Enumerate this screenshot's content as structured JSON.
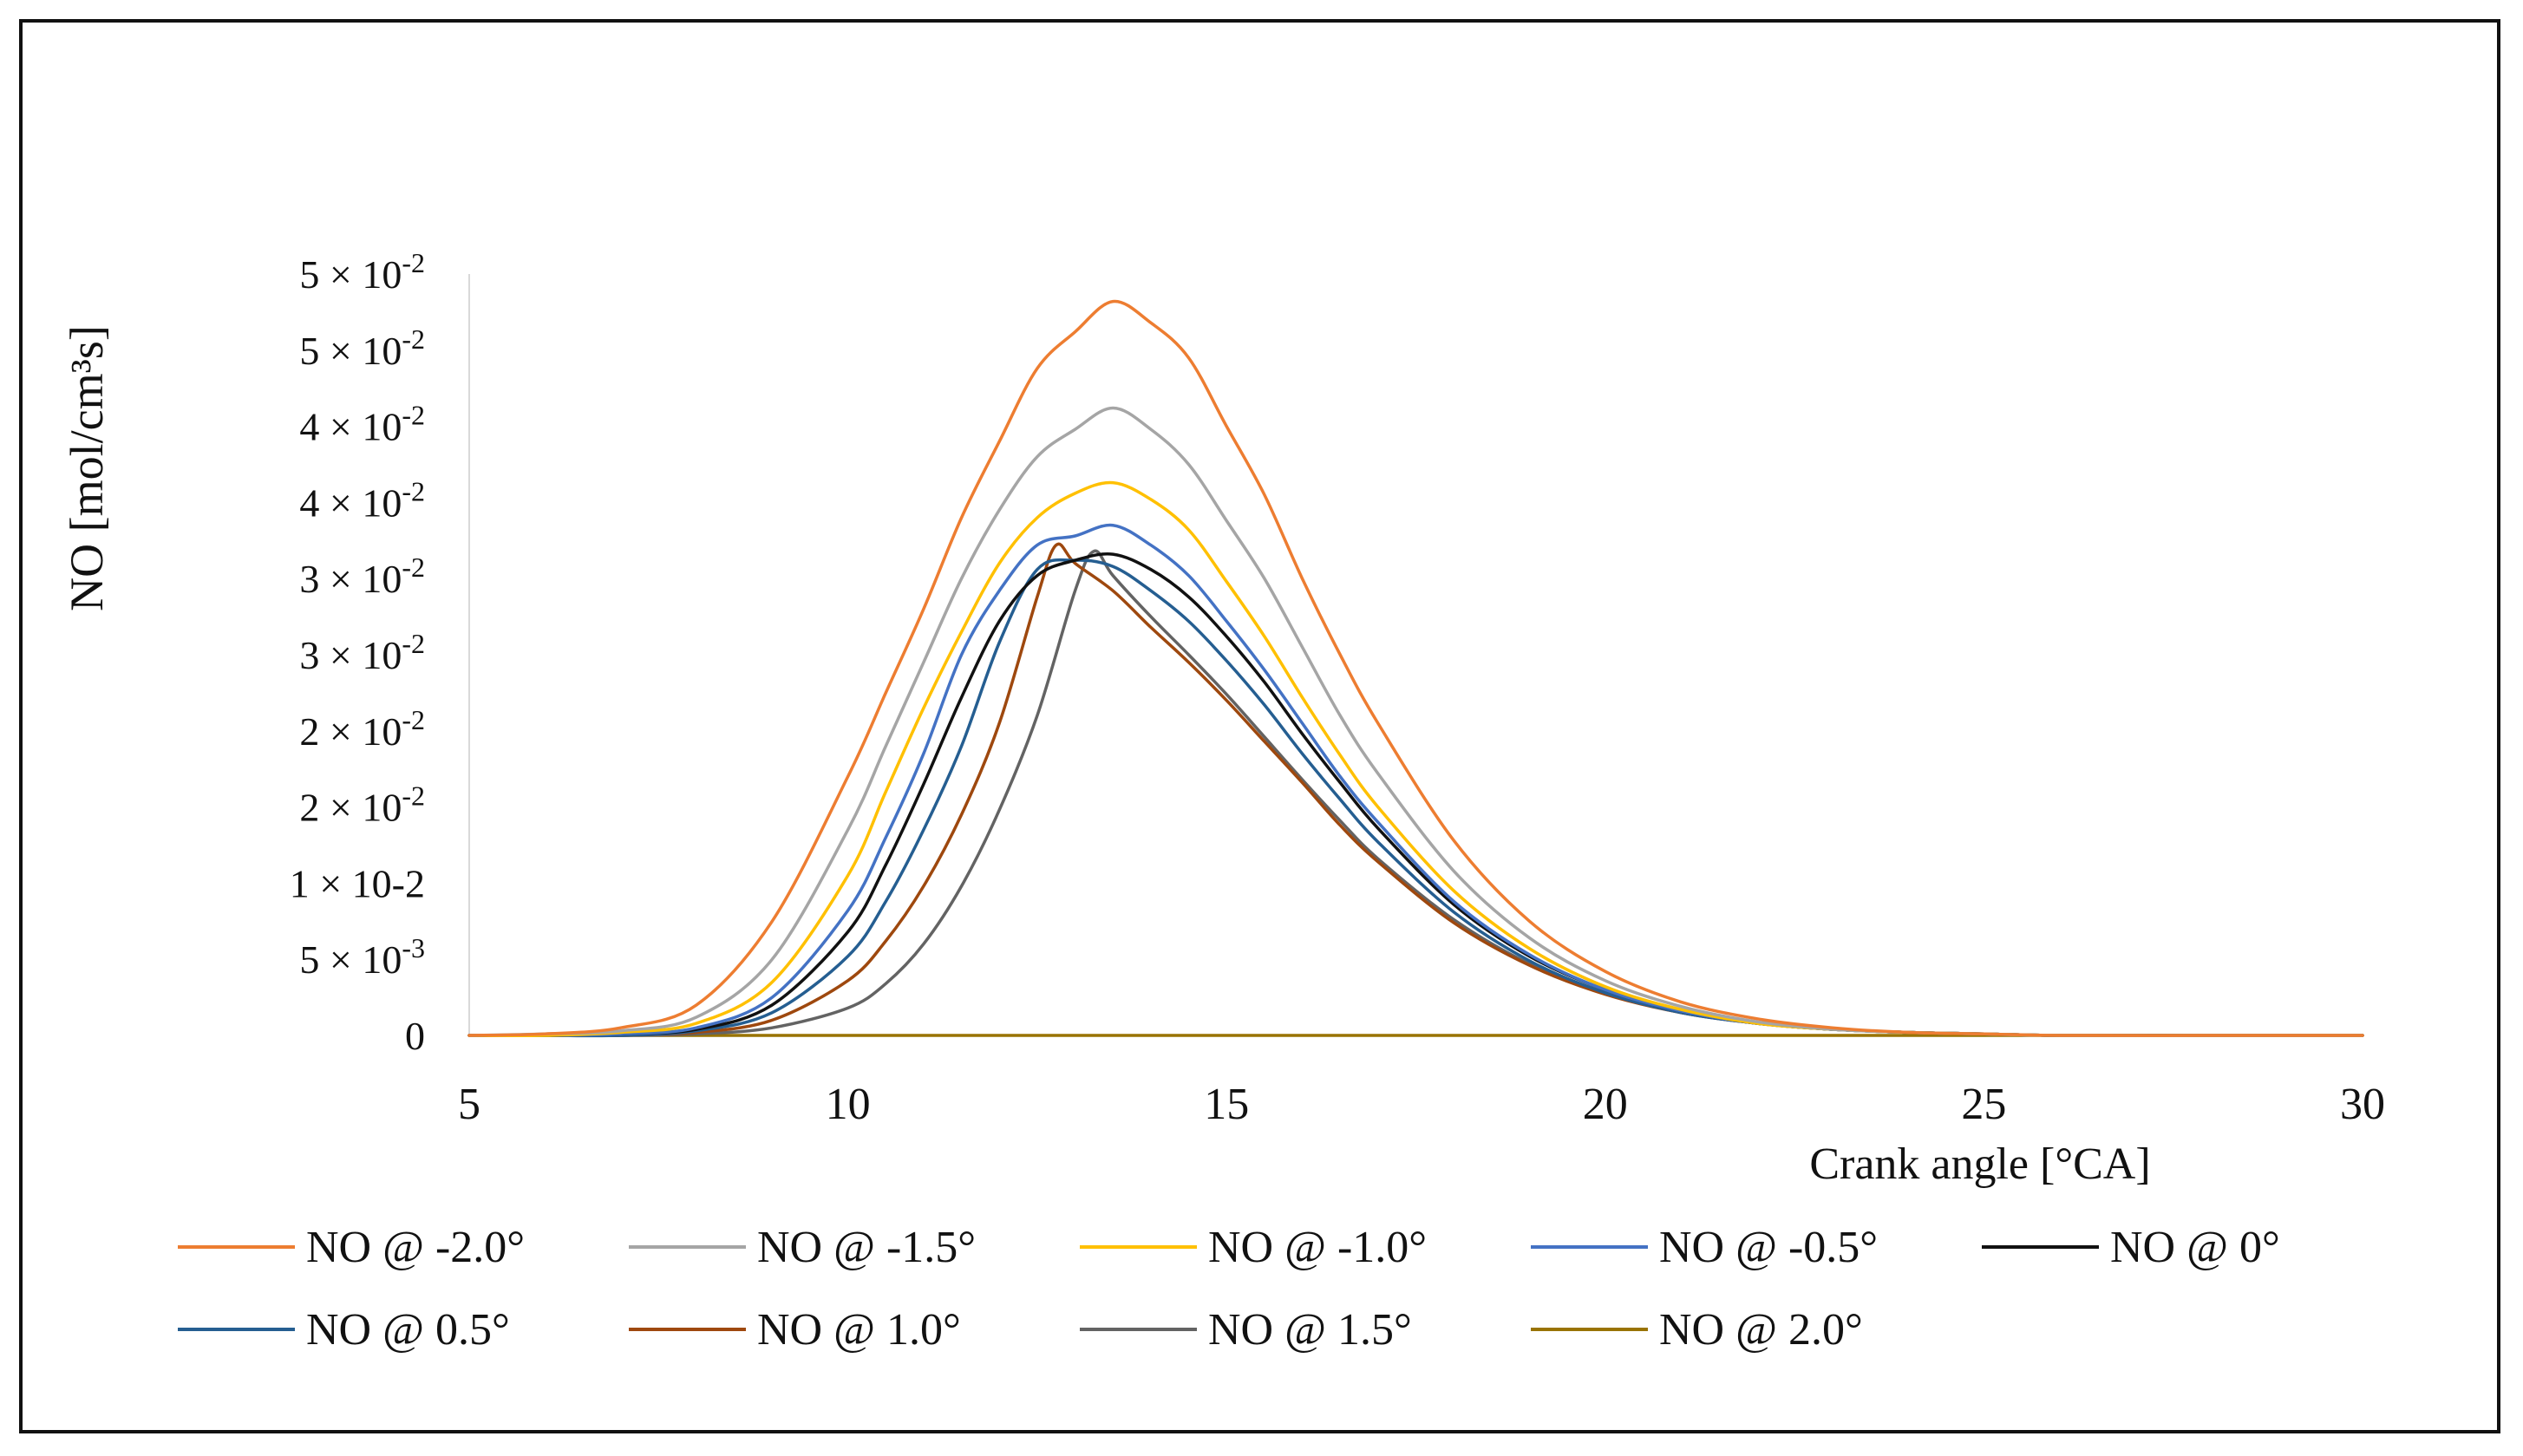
{
  "chart_data": {
    "type": "line",
    "title": "",
    "xlabel": "Crank angle  [°CA]",
    "ylabel": "NO  [mol/cm³s]",
    "xlim": [
      5,
      30
    ],
    "ylim": [
      0,
      0.05
    ],
    "grid": false,
    "legend_position": "bottom",
    "x_ticks": [
      5,
      10,
      15,
      20,
      25,
      30
    ],
    "x_tick_labels": [
      "5",
      "10",
      "15",
      "20",
      "25",
      "30"
    ],
    "y_ticks": [
      0,
      0.005,
      0.01,
      0.015,
      0.02,
      0.025,
      0.03,
      0.035,
      0.04,
      0.045,
      0.05
    ],
    "y_tick_labels": [
      {
        "base": "0",
        "exp": ""
      },
      {
        "base": "5 × 10",
        "exp": "-3"
      },
      {
        "base": "1 × 10-2",
        "exp": ""
      },
      {
        "base": "2 × 10",
        "exp": "-2"
      },
      {
        "base": "2 × 10",
        "exp": "-2"
      },
      {
        "base": "3 × 10",
        "exp": "-2"
      },
      {
        "base": "3 × 10",
        "exp": "-2"
      },
      {
        "base": "4 × 10",
        "exp": "-2"
      },
      {
        "base": "4 × 10",
        "exp": "-2"
      },
      {
        "base": "5 × 10",
        "exp": "-2"
      },
      {
        "base": "5 × 10",
        "exp": "-2"
      }
    ],
    "series": [
      {
        "name": "NO @ -2.0°",
        "color": "#ED7D31",
        "x": [
          5,
          6,
          7,
          8,
          9,
          10,
          10.5,
          11,
          11.5,
          12,
          12.5,
          13,
          13.5,
          14,
          14.5,
          15,
          15.5,
          16,
          16.5,
          17,
          18,
          19,
          20,
          21,
          22,
          23,
          24,
          25,
          26,
          28,
          30
        ],
        "y": [
          0,
          0.0001,
          0.0005,
          0.002,
          0.0075,
          0.017,
          0.0225,
          0.028,
          0.034,
          0.039,
          0.0438,
          0.0462,
          0.0482,
          0.0468,
          0.0445,
          0.04,
          0.0355,
          0.03,
          0.025,
          0.0205,
          0.0128,
          0.0075,
          0.0042,
          0.0022,
          0.0011,
          0.0005,
          0.0002,
          0.0001,
          0,
          0,
          0
        ]
      },
      {
        "name": "NO @ -1.5°",
        "color": "#A5A5A5",
        "x": [
          5,
          6,
          7,
          8,
          9,
          10,
          10.5,
          11,
          11.5,
          12,
          12.5,
          13,
          13.5,
          14,
          14.5,
          15,
          15.5,
          16,
          16.5,
          17,
          18,
          19,
          20,
          21,
          22,
          23,
          24,
          25,
          26,
          28,
          30
        ],
        "y": [
          0,
          0.0001,
          0.0003,
          0.0012,
          0.005,
          0.0135,
          0.019,
          0.0245,
          0.03,
          0.0345,
          0.038,
          0.0398,
          0.0412,
          0.0398,
          0.0375,
          0.0338,
          0.03,
          0.0255,
          0.021,
          0.0172,
          0.0108,
          0.0064,
          0.0036,
          0.0019,
          0.0009,
          0.0004,
          0.0002,
          0.0001,
          0,
          0,
          0
        ]
      },
      {
        "name": "NO @ -1.0°",
        "color": "#FFC000",
        "x": [
          5,
          6,
          7,
          8,
          9,
          10,
          10.5,
          11,
          11.5,
          12,
          12.5,
          13,
          13.5,
          14,
          14.5,
          15,
          15.5,
          16,
          16.5,
          17,
          18,
          19,
          20,
          21,
          22,
          23,
          24,
          25,
          26,
          28,
          30
        ],
        "y": [
          0,
          0,
          0.0002,
          0.0008,
          0.0035,
          0.0105,
          0.016,
          0.0215,
          0.0265,
          0.031,
          0.034,
          0.0356,
          0.0363,
          0.0352,
          0.0332,
          0.0298,
          0.0262,
          0.0222,
          0.0184,
          0.015,
          0.0095,
          0.0057,
          0.0032,
          0.0017,
          0.0008,
          0.0004,
          0.0002,
          0.0001,
          0,
          0,
          0
        ]
      },
      {
        "name": "NO @ -0.5°",
        "color": "#4472C4",
        "x": [
          5,
          6,
          7,
          8,
          9,
          10,
          10.5,
          11,
          11.5,
          12,
          12.5,
          13,
          13.5,
          14,
          14.5,
          15,
          15.5,
          16,
          16.5,
          17,
          18,
          19,
          20,
          21,
          22,
          23,
          24,
          25,
          26,
          28,
          30
        ],
        "y": [
          0,
          0,
          0.0001,
          0.0005,
          0.0025,
          0.0082,
          0.013,
          0.0185,
          0.025,
          0.0292,
          0.0322,
          0.0328,
          0.0335,
          0.0322,
          0.0302,
          0.0272,
          0.024,
          0.0205,
          0.017,
          0.014,
          0.0088,
          0.0053,
          0.003,
          0.0016,
          0.0008,
          0.0004,
          0.0002,
          0.0001,
          0,
          0,
          0
        ]
      },
      {
        "name": "NO @ 0°",
        "color": "#111111",
        "x": [
          5,
          6,
          7,
          8,
          9,
          10,
          10.5,
          11,
          11.5,
          12,
          12.5,
          13,
          13.5,
          14,
          14.5,
          15,
          15.5,
          16,
          16.5,
          17,
          18,
          19,
          20,
          21,
          22,
          23,
          24,
          25,
          26,
          28,
          30
        ],
        "y": [
          0,
          0,
          0.0001,
          0.0004,
          0.002,
          0.0068,
          0.0112,
          0.0165,
          0.0222,
          0.0272,
          0.0302,
          0.0312,
          0.0316,
          0.0306,
          0.0288,
          0.0262,
          0.0232,
          0.0198,
          0.0166,
          0.0136,
          0.0086,
          0.0052,
          0.003,
          0.0016,
          0.0008,
          0.0004,
          0.0002,
          0.0001,
          0,
          0,
          0
        ]
      },
      {
        "name": "NO @ 0.5°",
        "color": "#255E91",
        "x": [
          5,
          6,
          7,
          8,
          9,
          10,
          10.5,
          11,
          11.5,
          12,
          12.5,
          13,
          13.5,
          14,
          14.5,
          15,
          15.5,
          16,
          16.5,
          17,
          18,
          19,
          20,
          21,
          22,
          23,
          24,
          25,
          26,
          28,
          30
        ],
        "y": [
          0,
          0,
          0,
          0.0003,
          0.0015,
          0.0052,
          0.0088,
          0.0135,
          0.019,
          0.0258,
          0.0306,
          0.0312,
          0.0308,
          0.0292,
          0.0272,
          0.0246,
          0.0217,
          0.0185,
          0.0155,
          0.0127,
          0.0081,
          0.0049,
          0.0028,
          0.0015,
          0.0008,
          0.0004,
          0.0002,
          0.0001,
          0,
          0,
          0
        ]
      },
      {
        "name": "NO @ 1.0°",
        "color": "#9E480E",
        "x": [
          5,
          6,
          7,
          8,
          9,
          10,
          10.5,
          11,
          11.5,
          12,
          12.5,
          12.75,
          13,
          13.5,
          14,
          14.5,
          15,
          15.5,
          16,
          16.5,
          17,
          18,
          19,
          20,
          21,
          22,
          23,
          24,
          25,
          26,
          28,
          30
        ],
        "y": [
          0,
          0,
          0,
          0.0002,
          0.001,
          0.0036,
          0.0062,
          0.0098,
          0.0145,
          0.0205,
          0.0288,
          0.0322,
          0.031,
          0.0292,
          0.0268,
          0.0245,
          0.022,
          0.0193,
          0.0166,
          0.0138,
          0.0114,
          0.0074,
          0.0046,
          0.0027,
          0.0015,
          0.0008,
          0.0004,
          0.0002,
          0.0001,
          0,
          0,
          0
        ]
      },
      {
        "name": "NO @ 1.5°",
        "color": "#636363",
        "x": [
          5,
          6,
          7,
          8,
          9,
          10,
          10.5,
          11,
          11.5,
          12,
          12.5,
          13,
          13.25,
          13.5,
          14,
          14.5,
          15,
          15.5,
          16,
          16.5,
          17,
          18,
          19,
          20,
          21,
          22,
          23,
          24,
          25,
          26,
          28,
          30
        ],
        "y": [
          0,
          0,
          0,
          0.0001,
          0.0005,
          0.0018,
          0.0034,
          0.006,
          0.0098,
          0.0148,
          0.021,
          0.0292,
          0.0318,
          0.0302,
          0.0275,
          0.025,
          0.0224,
          0.0196,
          0.0168,
          0.0141,
          0.0116,
          0.0076,
          0.0047,
          0.0028,
          0.0015,
          0.0008,
          0.0004,
          0.0002,
          0.0001,
          0,
          0,
          0
        ]
      },
      {
        "name": "NO @ 2.0°",
        "color": "#997300",
        "x": [
          5,
          30
        ],
        "y": [
          0,
          0
        ]
      }
    ]
  }
}
